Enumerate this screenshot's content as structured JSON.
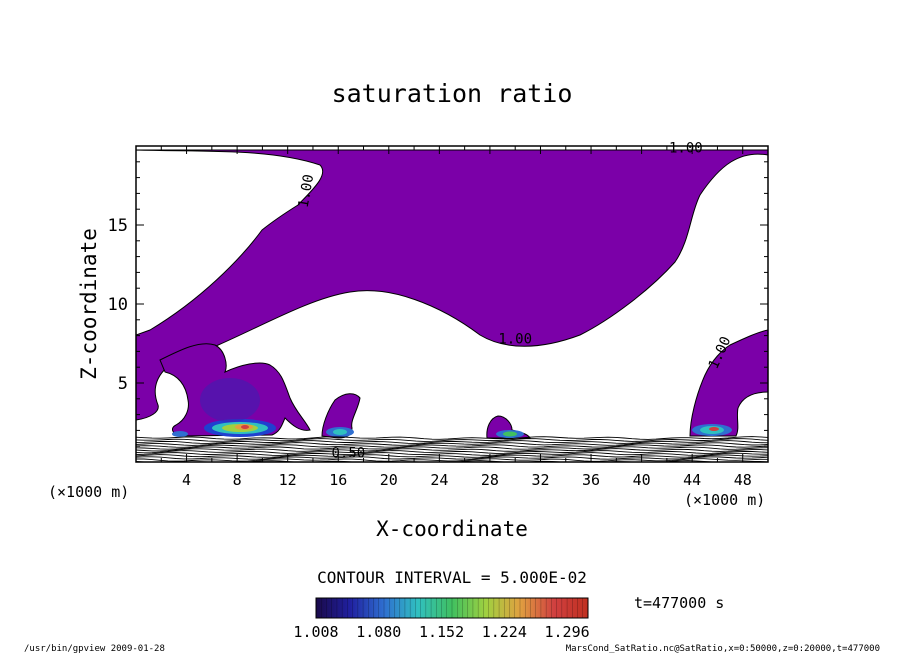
{
  "chart_data": {
    "type": "contour",
    "title": "saturation ratio",
    "xlabel": "X-coordinate",
    "ylabel": "Z-coordinate",
    "x_unit": "(×1000 m)",
    "x_unit_bottom": "(×1000 m)",
    "xlim": [
      0,
      50
    ],
    "ylim": [
      0,
      20
    ],
    "x_ticks": [
      4,
      8,
      12,
      16,
      20,
      24,
      28,
      32,
      36,
      40,
      44,
      48
    ],
    "y_ticks": [
      5,
      10,
      15
    ],
    "contour_interval_text": "CONTOUR INTERVAL = 5.000E-02",
    "contour_labels": [
      {
        "text": "1.00",
        "x": 43.5,
        "y": 19.6
      },
      {
        "text": "1.00",
        "x": 13.8,
        "y": 17.1
      },
      {
        "text": "1.00",
        "x": 30.0,
        "y": 7.5
      },
      {
        "text": "1.00",
        "x": 46.5,
        "y": 6.8
      },
      {
        "text": "0.50",
        "x": 16.8,
        "y": 0.3
      }
    ],
    "colorbar": {
      "ticks": [
        "1.008",
        "1.080",
        "1.152",
        "1.224",
        "1.296"
      ],
      "min": 1.008,
      "max": 1.32,
      "colormap": [
        "#1a0a4a",
        "#2020a0",
        "#2f6fd0",
        "#30c0c0",
        "#40c060",
        "#a0d040",
        "#e0a040",
        "#d04040",
        "#c03020"
      ]
    },
    "time_label": "t=477000 s",
    "fill_color": "#7b00a8"
  },
  "footer": {
    "left": "/usr/bin/gpview  2009-01-28",
    "right": "MarsCond_SatRatio.nc@SatRatio,x=0:50000,z=0:20000,t=477000"
  }
}
